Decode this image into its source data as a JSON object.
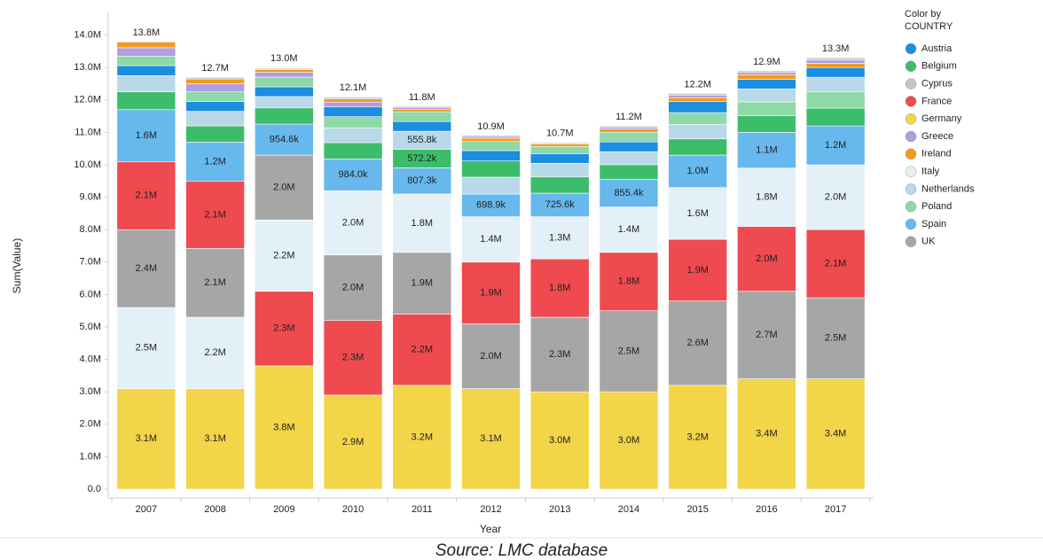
{
  "chart_data": {
    "type": "stacked_bar",
    "x_label": "Year",
    "y_label": "Sum(Value)",
    "legend_title": [
      "Color by",
      "COUNTRY"
    ],
    "legend": "right",
    "source": "Source: LMC database",
    "categories": [
      "2007",
      "2008",
      "2009",
      "2010",
      "2011",
      "2012",
      "2013",
      "2014",
      "2015",
      "2016",
      "2017"
    ],
    "ylim": [
      0,
      14700000
    ],
    "yticks": [
      {
        "value": 0,
        "label": "0.0"
      },
      {
        "value": 1000000,
        "label": "1.0M"
      },
      {
        "value": 2000000,
        "label": "2.0M"
      },
      {
        "value": 3000000,
        "label": "3.0M"
      },
      {
        "value": 4000000,
        "label": "4.0M"
      },
      {
        "value": 5000000,
        "label": "5.0M"
      },
      {
        "value": 6000000,
        "label": "6.0M"
      },
      {
        "value": 7000000,
        "label": "7.0M"
      },
      {
        "value": 8000000,
        "label": "8.0M"
      },
      {
        "value": 9000000,
        "label": "9.0M"
      },
      {
        "value": 10000000,
        "label": "10.0M"
      },
      {
        "value": 11000000,
        "label": "11.0M"
      },
      {
        "value": 12000000,
        "label": "12.0M"
      },
      {
        "value": 13000000,
        "label": "13.0M"
      },
      {
        "value": 14000000,
        "label": "14.0M"
      }
    ],
    "totals": [
      13800000,
      12700000,
      13000000,
      12100000,
      11800000,
      10900000,
      10700000,
      11200000,
      12200000,
      12900000,
      13300000
    ],
    "total_labels": [
      "13.8M",
      "12.7M",
      "13.0M",
      "12.1M",
      "11.8M",
      "10.9M",
      "10.7M",
      "11.2M",
      "12.2M",
      "12.9M",
      "13.3M"
    ],
    "series": [
      {
        "name": "Austria",
        "color": "#1c8ee0",
        "values": [
          310000,
          300000,
          300000,
          300000,
          300000,
          320000,
          300000,
          300000,
          340000,
          300000,
          300000
        ]
      },
      {
        "name": "Belgium",
        "color": "#3cbd6a",
        "values": [
          550000,
          500000,
          500000,
          500000,
          572200,
          500000,
          500000,
          450000,
          500000,
          520000,
          550000
        ],
        "value_labels": [
          null,
          null,
          null,
          null,
          "572.2k",
          null,
          null,
          null,
          null,
          null,
          null
        ]
      },
      {
        "name": "Cyprus",
        "color": "#c4c4c4",
        "values": [
          30000,
          50000,
          40000,
          50000,
          30000,
          40000,
          20000,
          40000,
          50000,
          50000,
          70000
        ]
      },
      {
        "name": "France",
        "color": "#ee4a4f",
        "values": [
          2100000,
          2080000,
          2300000,
          2300000,
          2200000,
          1900000,
          1800000,
          1800000,
          1900000,
          2000000,
          2100000
        ],
        "value_labels": [
          "2.1M",
          "2.1M",
          "2.3M",
          "2.3M",
          "2.2M",
          "1.9M",
          "1.8M",
          "1.8M",
          "1.9M",
          "2.0M",
          "2.1M"
        ]
      },
      {
        "name": "Germany",
        "color": "#f2d548",
        "values": [
          3100000,
          3100000,
          3800000,
          2900000,
          3200000,
          3100000,
          3000000,
          3000000,
          3200000,
          3400000,
          3400000
        ],
        "value_labels": [
          "3.1M",
          "3.1M",
          "3.8M",
          "2.9M",
          "3.2M",
          "3.1M",
          "3.0M",
          "3.0M",
          "3.2M",
          "3.4M",
          "3.4M"
        ]
      },
      {
        "name": "Greece",
        "color": "#b09ee0",
        "values": [
          260000,
          250000,
          150000,
          150000,
          60000,
          50000,
          30000,
          50000,
          80000,
          70000,
          100000
        ]
      },
      {
        "name": "Ireland",
        "color": "#f5991b",
        "values": [
          170000,
          150000,
          80000,
          100000,
          80000,
          100000,
          80000,
          100000,
          120000,
          140000,
          130000
        ]
      },
      {
        "name": "Italy",
        "color": "#e4f0f8",
        "values": [
          2500000,
          2200000,
          2200000,
          1980000,
          1800000,
          1400000,
          1300000,
          1400000,
          1600000,
          1800000,
          2000000
        ],
        "value_labels": [
          "2.5M",
          "2.2M",
          "2.2M",
          "2.0M",
          "1.8M",
          "1.4M",
          "1.3M",
          "1.4M",
          "1.6M",
          "1.8M",
          "2.0M"
        ]
      },
      {
        "name": "Netherlands",
        "color": "#b9d8e8",
        "values": [
          500000,
          450000,
          350000,
          450000,
          555800,
          520000,
          420000,
          400000,
          450000,
          400000,
          450000
        ],
        "value_labels": [
          null,
          null,
          null,
          null,
          "555.8k",
          null,
          null,
          null,
          null,
          null,
          null
        ]
      },
      {
        "name": "Poland",
        "color": "#8fd8a8",
        "values": [
          290000,
          300000,
          300000,
          350000,
          300000,
          280000,
          220000,
          300000,
          360000,
          420000,
          500000
        ]
      },
      {
        "name": "Spain",
        "color": "#67b8ec",
        "values": [
          1600000,
          1200000,
          954600,
          984000,
          807300,
          698900,
          725600,
          855400,
          1000000,
          1100000,
          1200000
        ],
        "value_labels": [
          "1.6M",
          "1.2M",
          "954.6k",
          "984.0k",
          "807.3k",
          "698.9k",
          "725.6k",
          "855.4k",
          "1.0M",
          "1.1M",
          "1.2M"
        ]
      },
      {
        "name": "UK",
        "color": "#a6a6a6",
        "values": [
          2400000,
          2120000,
          2000000,
          2020000,
          1900000,
          2000000,
          2300000,
          2500000,
          2600000,
          2700000,
          2500000
        ],
        "value_labels": [
          "2.4M",
          "2.1M",
          "2.0M",
          "2.0M",
          "1.9M",
          "2.0M",
          "2.3M",
          "2.5M",
          "2.6M",
          "2.7M",
          "2.5M"
        ]
      }
    ]
  }
}
